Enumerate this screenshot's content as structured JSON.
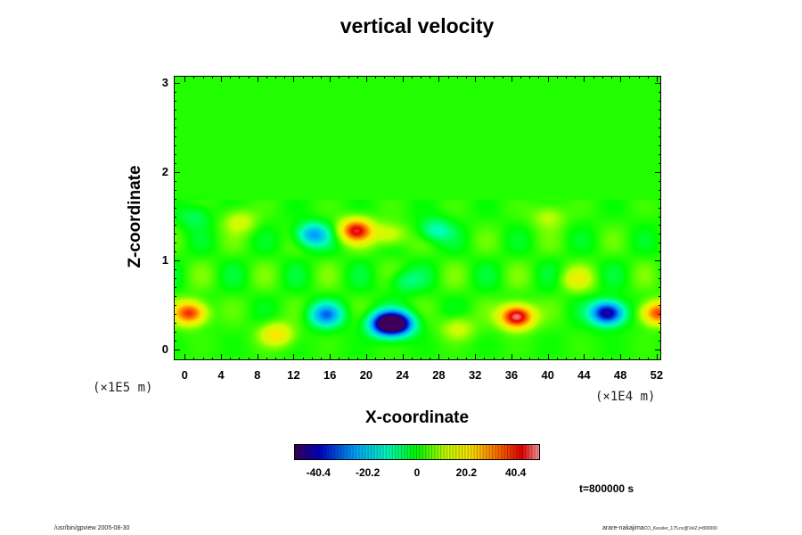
{
  "chart_data": {
    "type": "heatmap",
    "title": "vertical velocity",
    "xlabel": "X-coordinate",
    "ylabel": "Z-coordinate",
    "x_unit": "(×1E4 m)",
    "y_unit": "(×1E5 m)",
    "x_ticks": [
      "0",
      "4",
      "8",
      "12",
      "16",
      "20",
      "24",
      "28",
      "32",
      "36",
      "40",
      "44",
      "48",
      "52"
    ],
    "y_ticks": [
      "0",
      "1",
      "2",
      "3"
    ],
    "xlim": [
      -1.2,
      52.5
    ],
    "ylim": [
      -0.12,
      3.08
    ],
    "colorbar": {
      "range": [
        -50,
        50
      ],
      "tick_labels": [
        "-40.4",
        "-20.2",
        "0",
        "20.2",
        "40.4"
      ],
      "tick_values": [
        -40.4,
        -20.2,
        0,
        20.2,
        40.4
      ]
    },
    "background_value": 2,
    "features": [
      {
        "x": 0.5,
        "z": 0.42,
        "value": 38
      },
      {
        "x": 36.5,
        "z": 0.38,
        "value": 50
      },
      {
        "x": 52.0,
        "z": 0.42,
        "value": 36
      },
      {
        "x": 46.5,
        "z": 0.42,
        "value": -50
      },
      {
        "x": 22.0,
        "z": 0.3,
        "value": -48
      },
      {
        "x": 23.5,
        "z": 0.3,
        "value": -42
      },
      {
        "x": 15.5,
        "z": 0.4,
        "value": -30
      },
      {
        "x": 18.8,
        "z": 1.35,
        "value": 40
      },
      {
        "x": 14.0,
        "z": 1.3,
        "value": -28
      },
      {
        "x": 22.5,
        "z": 1.3,
        "value": 15
      },
      {
        "x": 27.5,
        "z": 1.35,
        "value": -15
      },
      {
        "x": 10.0,
        "z": 0.18,
        "value": 20
      },
      {
        "x": 43.0,
        "z": 0.8,
        "value": 12
      },
      {
        "x": 30.0,
        "z": 0.25,
        "value": 12
      },
      {
        "x": 6.0,
        "z": 1.45,
        "value": 12
      },
      {
        "x": 40.0,
        "z": 1.5,
        "value": 10
      },
      {
        "x": 24.0,
        "z": 0.78,
        "value": -10
      },
      {
        "x": 1.0,
        "z": 1.5,
        "value": -8
      }
    ],
    "time_label": "t=800000 s"
  },
  "footer": {
    "left": "/usr/bin/gpview 2005-08-30",
    "right_main": "arare-nakajima",
    "right_small": "CO_Kessler_175.nc@VelZ,t=800000"
  }
}
